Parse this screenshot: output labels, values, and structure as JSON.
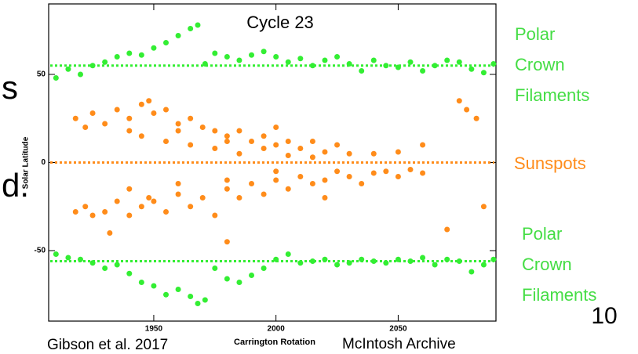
{
  "chart_data": {
    "type": "scatter",
    "title": "Cycle 23",
    "x_label": "Carrington Rotation",
    "y_label": "Solar Latitude",
    "xlim": [
      1907,
      2090
    ],
    "ylim": [
      -90,
      90
    ],
    "xticks": [
      1950,
      2000,
      2050
    ],
    "yticks": [
      50,
      0,
      -50
    ],
    "reference_lines": [
      {
        "value": 55,
        "color": "#33ee33"
      },
      {
        "value": 0,
        "color": "#ff8c1a"
      },
      {
        "value": -56,
        "color": "#33ee33"
      }
    ],
    "series": [
      {
        "color": "#33ee33",
        "x": [
          1910,
          1915,
          1920,
          1925,
          1930,
          1935,
          1940,
          1945,
          1950,
          1955,
          1960,
          1965,
          1968,
          1971,
          1975,
          1980,
          1985,
          1990,
          1995,
          2000,
          2005,
          2010,
          2015,
          2020,
          2025,
          2030,
          2035,
          2040,
          2045,
          2050,
          2055,
          2060,
          2065,
          2070,
          2075,
          2080,
          2085,
          2089
        ],
        "y": [
          48,
          53,
          50,
          55,
          57,
          60,
          62,
          61,
          65,
          68,
          72,
          76,
          78,
          56,
          62,
          60,
          58,
          61,
          63,
          60,
          57,
          59,
          55,
          58,
          60,
          56,
          52,
          58,
          55,
          54,
          57,
          52,
          55,
          58,
          57,
          53,
          51,
          56
        ]
      },
      {
        "color": "#ff8c1a",
        "x": [
          1918,
          1922,
          1925,
          1930,
          1935,
          1940,
          1945,
          1948,
          1950,
          1955,
          1960,
          1965,
          1970,
          1975,
          1980,
          1985,
          1990,
          1995,
          2000,
          2005,
          2010,
          2015,
          2020,
          2025,
          2030,
          1945,
          1955,
          1965,
          1975,
          1985,
          1995,
          2005,
          2015,
          2040,
          2050,
          2060,
          2075,
          2078,
          2082,
          1940,
          1960,
          1980,
          2000
        ],
        "y": [
          25,
          20,
          28,
          22,
          30,
          25,
          33,
          35,
          28,
          30,
          22,
          25,
          20,
          18,
          15,
          18,
          12,
          15,
          10,
          12,
          8,
          12,
          6,
          10,
          5,
          15,
          12,
          10,
          8,
          5,
          8,
          4,
          3,
          5,
          6,
          10,
          35,
          30,
          25,
          18,
          18,
          12,
          20
        ]
      },
      {
        "color": "#ff8c1a",
        "x": [
          1918,
          1922,
          1925,
          1930,
          1935,
          1940,
          1945,
          1948,
          1950,
          1955,
          1960,
          1965,
          1970,
          1975,
          1980,
          1985,
          1990,
          1995,
          2000,
          2005,
          2010,
          2015,
          2020,
          2025,
          2030,
          2035,
          2040,
          2045,
          2050,
          2055,
          2060,
          1940,
          1960,
          1980,
          2000,
          2020,
          1932,
          1980,
          2070,
          2085
        ],
        "y": [
          -28,
          -25,
          -30,
          -28,
          -22,
          -30,
          -25,
          -20,
          -22,
          -28,
          -18,
          -25,
          -20,
          -30,
          -15,
          -20,
          -12,
          -18,
          -10,
          -15,
          -8,
          -12,
          -10,
          -5,
          -8,
          -12,
          -6,
          -5,
          -8,
          -4,
          -6,
          -15,
          -12,
          -10,
          -5,
          -20,
          -40,
          -45,
          -38,
          -25
        ]
      },
      {
        "color": "#33ee33",
        "x": [
          1910,
          1915,
          1920,
          1925,
          1930,
          1935,
          1940,
          1945,
          1950,
          1955,
          1960,
          1965,
          1968,
          1971,
          1975,
          1980,
          1985,
          1990,
          1995,
          2000,
          2005,
          2010,
          2015,
          2020,
          2025,
          2030,
          2035,
          2040,
          2045,
          2050,
          2055,
          2060,
          2065,
          2070,
          2075,
          2080,
          2085,
          2089
        ],
        "y": [
          -52,
          -54,
          -55,
          -57,
          -60,
          -58,
          -63,
          -68,
          -70,
          -75,
          -72,
          -76,
          -80,
          -78,
          -60,
          -66,
          -68,
          -64,
          -60,
          -55,
          -52,
          -57,
          -56,
          -55,
          -58,
          -57,
          -55,
          -56,
          -57,
          -55,
          -56,
          -54,
          -58,
          -55,
          -56,
          -62,
          -58,
          -55
        ]
      }
    ],
    "annotations": [
      {
        "lines": [
          "Polar",
          "Crown",
          "Filaments"
        ],
        "color": "#44dd44"
      },
      {
        "lines": [
          "Sunspots"
        ],
        "color": "#ff8c1a"
      },
      {
        "lines": [
          "Polar",
          "Crown",
          "Filaments"
        ],
        "color": "#44dd44"
      }
    ],
    "slide_fragments": [
      "s",
      "d."
    ],
    "page_number": "10",
    "credit_left": "Gibson et al. 2017",
    "credit_right": "McIntosh Archive"
  }
}
